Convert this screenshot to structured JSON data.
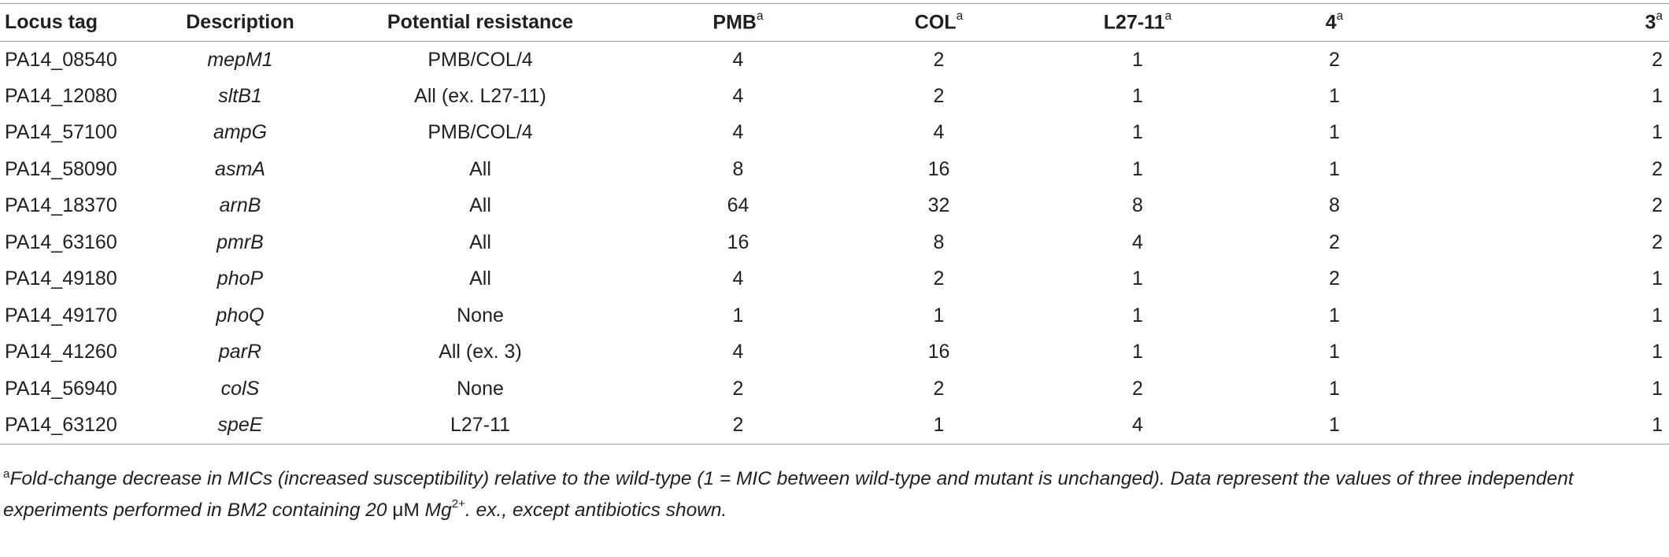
{
  "table": {
    "headers": {
      "locus": "Locus tag",
      "description": "Description",
      "potential": "Potential resistance",
      "pmb": "PMB",
      "col": "COL",
      "l27": "L27-11",
      "four": "4",
      "three": "3",
      "superscript": "a"
    },
    "rows": [
      {
        "locus": "PA14_08540",
        "description": "mepM1",
        "potential": "PMB/COL/4",
        "pmb": "4",
        "col": "2",
        "l27": "1",
        "four": "2",
        "three": "2"
      },
      {
        "locus": "PA14_12080",
        "description": "sltB1",
        "potential": "All (ex. L27-11)",
        "pmb": "4",
        "col": "2",
        "l27": "1",
        "four": "1",
        "three": "1"
      },
      {
        "locus": "PA14_57100",
        "description": "ampG",
        "potential": "PMB/COL/4",
        "pmb": "4",
        "col": "4",
        "l27": "1",
        "four": "1",
        "three": "1"
      },
      {
        "locus": "PA14_58090",
        "description": "asmA",
        "potential": "All",
        "pmb": "8",
        "col": "16",
        "l27": "1",
        "four": "1",
        "three": "2"
      },
      {
        "locus": "PA14_18370",
        "description": "arnB",
        "potential": "All",
        "pmb": "64",
        "col": "32",
        "l27": "8",
        "four": "8",
        "three": "2"
      },
      {
        "locus": "PA14_63160",
        "description": "pmrB",
        "potential": "All",
        "pmb": "16",
        "col": "8",
        "l27": "4",
        "four": "2",
        "three": "2"
      },
      {
        "locus": "PA14_49180",
        "description": "phoP",
        "potential": "All",
        "pmb": "4",
        "col": "2",
        "l27": "1",
        "four": "2",
        "three": "1"
      },
      {
        "locus": "PA14_49170",
        "description": "phoQ",
        "potential": "None",
        "pmb": "1",
        "col": "1",
        "l27": "1",
        "four": "1",
        "three": "1"
      },
      {
        "locus": "PA14_41260",
        "description": "parR",
        "potential": "All (ex. 3)",
        "pmb": "4",
        "col": "16",
        "l27": "1",
        "four": "1",
        "three": "1"
      },
      {
        "locus": "PA14_56940",
        "description": "colS",
        "potential": "None",
        "pmb": "2",
        "col": "2",
        "l27": "2",
        "four": "1",
        "three": "1"
      },
      {
        "locus": "PA14_63120",
        "description": "speE",
        "potential": "L27-11",
        "pmb": "2",
        "col": "1",
        "l27": "4",
        "four": "1",
        "three": "1"
      }
    ]
  },
  "footnote": {
    "mark": "a",
    "text_1": "Fold-change decrease in MICs (increased susceptibility) relative to the wild-type (1 = MIC between wild-type and mutant is unchanged). Data represent the values of three independent experiments performed in BM2 containing 20 ",
    "unit": "μM",
    "text_2": " Mg",
    "ion_charge": "2+",
    "text_3": ". ex., except antibiotics shown."
  }
}
